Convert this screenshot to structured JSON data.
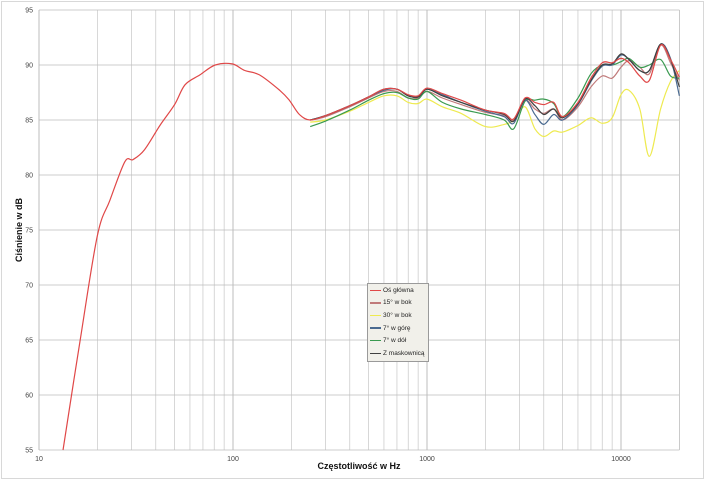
{
  "chart_data": {
    "type": "line",
    "xlabel": "Częstotliwość w Hz",
    "ylabel": "Ciśnienie w dB",
    "xscale": "log",
    "xlim": [
      10,
      20000
    ],
    "ylim": [
      55,
      95
    ],
    "xticks": [
      "10",
      "100",
      "1000",
      "10000"
    ],
    "yticks": [
      "55",
      "60",
      "65",
      "70",
      "75",
      "80",
      "85",
      "90",
      "95"
    ],
    "grid": true,
    "legend_position": "center",
    "series": [
      {
        "name": "Oś główna",
        "color": "#e04848",
        "x": [
          13.3,
          16.3,
          20,
          23.2,
          27.7,
          30.5,
          35,
          42,
          50,
          56.6,
          67.5,
          81,
          99,
          115,
          137,
          174,
          195,
          220,
          250,
          300,
          400,
          500,
          600,
          700,
          800,
          900,
          1000,
          1200,
          1500,
          2000,
          2500,
          2800,
          3200,
          3600,
          4000,
          4500,
          5000,
          6000,
          7000,
          8000,
          9000,
          10000,
          11000,
          12500,
          14000,
          16000,
          18000,
          20000
        ],
        "y": [
          55,
          65,
          74.5,
          77.7,
          81.2,
          81.4,
          82.3,
          84.5,
          86.4,
          88.2,
          89.1,
          90,
          90.1,
          89.5,
          89.1,
          87.7,
          86.8,
          85.5,
          85,
          85.4,
          86.3,
          87.1,
          87.8,
          87.8,
          87.3,
          87.2,
          87.9,
          87.4,
          86.8,
          85.9,
          85.6,
          85.1,
          87.0,
          86.6,
          86.4,
          86.6,
          85.3,
          86.6,
          88.8,
          90.2,
          90.2,
          90.6,
          90.2,
          89.0,
          88.6,
          91.8,
          90.5,
          88.9
        ]
      },
      {
        "name": "15° w bok",
        "color": "#c07a7a",
        "x": [
          250,
          300,
          400,
          500,
          600,
          700,
          800,
          900,
          1000,
          1200,
          1500,
          2000,
          2500,
          2800,
          3200,
          3600,
          4000,
          4500,
          5000,
          6000,
          7000,
          8000,
          9000,
          10000,
          11000,
          12500,
          14000,
          16000,
          18000,
          20000
        ],
        "y": [
          85,
          85.3,
          86.2,
          87.0,
          87.6,
          87.6,
          87.0,
          87.0,
          87.6,
          87.0,
          86.4,
          85.7,
          85.4,
          85.0,
          86.8,
          86.0,
          85.6,
          86.0,
          85.0,
          86.2,
          88.0,
          89.0,
          88.8,
          89.8,
          90.4,
          89.8,
          89.2,
          91.8,
          90.2,
          88.6
        ]
      },
      {
        "name": "30° w bok",
        "color": "#eeea50",
        "x": [
          250,
          300,
          400,
          500,
          600,
          700,
          800,
          900,
          1000,
          1200,
          1500,
          2000,
          2500,
          2800,
          3200,
          3600,
          4000,
          4500,
          5000,
          6000,
          7000,
          8000,
          9000,
          10000,
          11000,
          12500,
          14000,
          16000,
          18000,
          20000
        ],
        "y": [
          84.8,
          85.0,
          85.8,
          86.6,
          87.2,
          87.2,
          86.6,
          86.5,
          86.9,
          86.2,
          85.6,
          84.4,
          84.6,
          85.0,
          86.2,
          84.2,
          83.5,
          84.0,
          83.9,
          84.5,
          85.2,
          84.7,
          85.2,
          87.3,
          87.7,
          86.0,
          81.7,
          86.0,
          88.5,
          89.5
        ]
      },
      {
        "name": "7° w górę",
        "color": "#4a6a90",
        "x": [
          250,
          300,
          400,
          500,
          600,
          700,
          800,
          900,
          1000,
          1200,
          1500,
          2000,
          2500,
          2800,
          3200,
          3600,
          4000,
          4500,
          5000,
          6000,
          7000,
          8000,
          9000,
          10000,
          11000,
          12500,
          14000,
          16000,
          18000,
          20000
        ],
        "y": [
          85,
          85.4,
          86.3,
          87.1,
          87.7,
          87.8,
          87.2,
          87.1,
          87.8,
          87.3,
          86.6,
          85.8,
          85.3,
          84.7,
          86.8,
          85.5,
          84.6,
          85.5,
          85.0,
          86.4,
          88.5,
          89.9,
          90.0,
          90.9,
          90.5,
          89.5,
          89.5,
          91.9,
          90.6,
          87.2
        ]
      },
      {
        "name": "7° w dół",
        "color": "#3a9a50",
        "x": [
          250,
          300,
          400,
          500,
          600,
          700,
          800,
          900,
          1000,
          1200,
          1500,
          2000,
          2500,
          2800,
          3200,
          3600,
          4000,
          4500,
          5000,
          6000,
          7000,
          8000,
          9000,
          10000,
          11000,
          12500,
          14000,
          16000,
          18000,
          20000
        ],
        "y": [
          84.4,
          84.9,
          85.9,
          86.8,
          87.4,
          87.5,
          87.0,
          86.9,
          87.6,
          86.6,
          86.0,
          85.5,
          85.0,
          84.2,
          86.7,
          86.8,
          86.9,
          86.5,
          85.3,
          87.0,
          89.2,
          90.0,
          90.0,
          90.3,
          90.6,
          89.8,
          90.0,
          90.5,
          89.0,
          88.8
        ]
      },
      {
        "name": "Z maskownicą",
        "color": "#404040",
        "x": [
          250,
          300,
          400,
          500,
          600,
          700,
          800,
          900,
          1000,
          1200,
          1500,
          2000,
          2500,
          2800,
          3200,
          3600,
          4000,
          4500,
          5000,
          6000,
          7000,
          8000,
          9000,
          10000,
          11000,
          12500,
          14000,
          16000,
          18000,
          20000
        ],
        "y": [
          85,
          85.4,
          86.3,
          87.1,
          87.8,
          87.8,
          87.2,
          87.1,
          87.8,
          87.2,
          86.6,
          85.9,
          85.5,
          84.9,
          86.9,
          86.3,
          85.5,
          86.0,
          85.2,
          86.5,
          88.6,
          90.0,
          90.1,
          91.0,
          90.5,
          89.5,
          89.5,
          91.9,
          90.5,
          88.0
        ]
      }
    ]
  }
}
